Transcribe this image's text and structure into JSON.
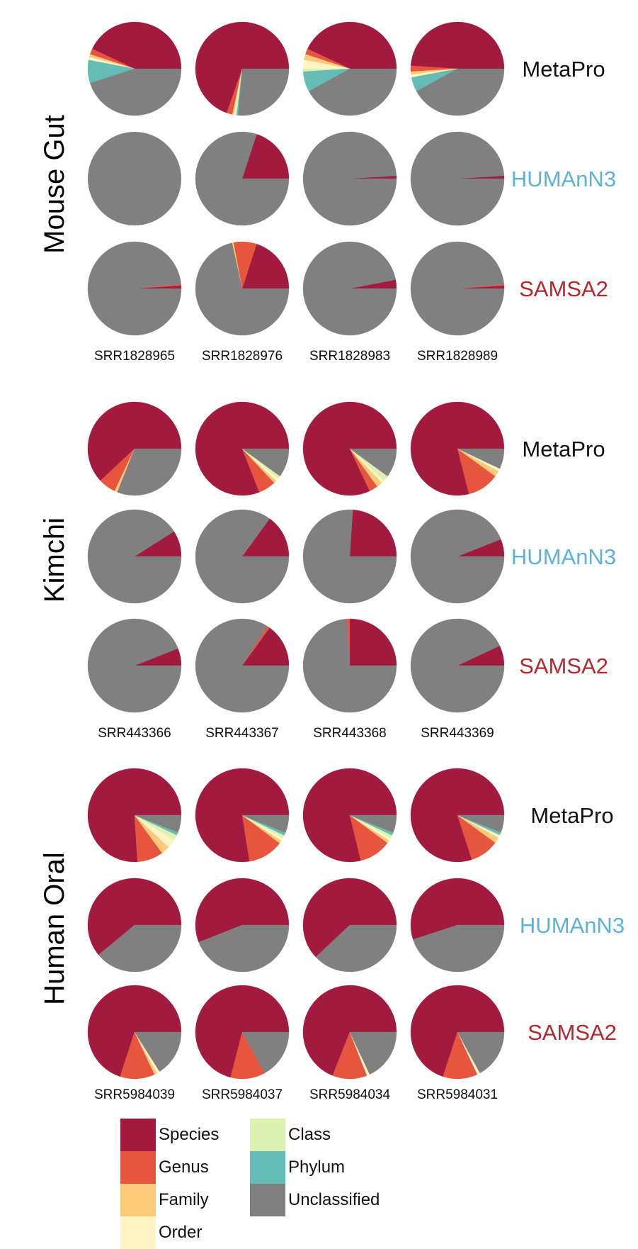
{
  "colors": {
    "Species": "#A31A3F",
    "Genus": "#E8553F",
    "Family": "#FDC97B",
    "Order": "#FEF4C4",
    "Class": "#DDF2B0",
    "Phylum": "#63BDB6",
    "Unclassified": "#808080",
    "MetaPro": "#111111",
    "HUMAnN3": "#5BB3D6",
    "SAMSA2": "#B5262D"
  },
  "chart_data": {
    "type": "pie",
    "categories": [
      "Species",
      "Genus",
      "Family",
      "Order",
      "Class",
      "Phylum",
      "Unclassified"
    ],
    "tools": [
      "MetaPro",
      "HUMAnN3",
      "SAMSA2"
    ],
    "legend": {
      "items": [
        "Species",
        "Genus",
        "Family",
        "Order",
        "Class",
        "Phylum",
        "Unclassified"
      ],
      "placement": "bottom"
    },
    "groups": [
      {
        "name": "Mouse Gut",
        "samples": [
          "SRR1828965",
          "SRR1828976",
          "SRR1828983",
          "SRR1828989"
        ],
        "pies": {
          "MetaPro": [
            [
              0.43,
              0.02,
              0.01,
              0.01,
              0.0,
              0.08,
              0.45
            ],
            [
              0.7,
              0.02,
              0.005,
              0.005,
              0.005,
              0.005,
              0.265
            ],
            [
              0.43,
              0.02,
              0.02,
              0.03,
              0.01,
              0.07,
              0.42
            ],
            [
              0.49,
              0.02,
              0.01,
              0.01,
              0.0,
              0.05,
              0.42
            ]
          ],
          "HUMAnN3": [
            [
              0.0,
              0.0,
              0.0,
              0.0,
              0.0,
              0.0,
              1.0
            ],
            [
              0.2,
              0.0,
              0.0,
              0.0,
              0.0,
              0.0,
              0.8
            ],
            [
              0.01,
              0.0,
              0.0,
              0.0,
              0.0,
              0.0,
              0.99
            ],
            [
              0.01,
              0.0,
              0.0,
              0.0,
              0.0,
              0.0,
              0.99
            ]
          ],
          "SAMSA2": [
            [
              0.01,
              0.005,
              0.0,
              0.0,
              0.0,
              0.0,
              0.985
            ],
            [
              0.2,
              0.08,
              0.005,
              0.0,
              0.0,
              0.0,
              0.715
            ],
            [
              0.03,
              0.0,
              0.0,
              0.0,
              0.0,
              0.0,
              0.97
            ],
            [
              0.01,
              0.005,
              0.0,
              0.0,
              0.0,
              0.0,
              0.985
            ]
          ]
        }
      },
      {
        "name": "Kimchi",
        "samples": [
          "SRR443366",
          "SRR443367",
          "SRR443368",
          "SRR443369"
        ],
        "pies": {
          "MetaPro": [
            [
              0.62,
              0.06,
              0.01,
              0.0,
              0.0,
              0.0,
              0.31
            ],
            [
              0.81,
              0.06,
              0.01,
              0.01,
              0.01,
              0.0,
              0.1
            ],
            [
              0.82,
              0.03,
              0.02,
              0.01,
              0.02,
              0.0,
              0.1
            ],
            [
              0.79,
              0.11,
              0.02,
              0.01,
              0.0,
              0.0,
              0.07
            ]
          ],
          "HUMAnN3": [
            [
              0.09,
              0.0,
              0.0,
              0.0,
              0.0,
              0.0,
              0.91
            ],
            [
              0.15,
              0.0,
              0.0,
              0.0,
              0.0,
              0.0,
              0.85
            ],
            [
              0.24,
              0.0,
              0.0,
              0.0,
              0.0,
              0.0,
              0.76
            ],
            [
              0.06,
              0.0,
              0.0,
              0.0,
              0.0,
              0.0,
              0.94
            ]
          ],
          "SAMSA2": [
            [
              0.06,
              0.0,
              0.0,
              0.0,
              0.0,
              0.0,
              0.94
            ],
            [
              0.15,
              0.01,
              0.0,
              0.0,
              0.0,
              0.0,
              0.84
            ],
            [
              0.25,
              0.01,
              0.0,
              0.0,
              0.0,
              0.0,
              0.74
            ],
            [
              0.07,
              0.0,
              0.0,
              0.0,
              0.0,
              0.0,
              0.93
            ]
          ]
        }
      },
      {
        "name": "Human Oral",
        "samples": [
          "SRR5984039",
          "SRR5984037",
          "SRR5984034",
          "SRR5984031"
        ],
        "pies": {
          "MetaPro": [
            [
              0.76,
              0.09,
              0.03,
              0.03,
              0.02,
              0.01,
              0.06
            ],
            [
              0.76,
              0.12,
              0.01,
              0.01,
              0.01,
              0.01,
              0.06
            ],
            [
              0.78,
              0.11,
              0.01,
              0.01,
              0.01,
              0.01,
              0.06
            ],
            [
              0.8,
              0.1,
              0.02,
              0.01,
              0.0,
              0.01,
              0.06
            ]
          ],
          "HUMAnN3": [
            [
              0.61,
              0.0,
              0.0,
              0.0,
              0.0,
              0.0,
              0.39
            ],
            [
              0.56,
              0.0,
              0.0,
              0.0,
              0.0,
              0.0,
              0.44
            ],
            [
              0.62,
              0.0,
              0.0,
              0.0,
              0.0,
              0.0,
              0.38
            ],
            [
              0.55,
              0.0,
              0.0,
              0.0,
              0.0,
              0.0,
              0.45
            ]
          ],
          "SAMSA2": [
            [
              0.7,
              0.12,
              0.01,
              0.01,
              0.0,
              0.0,
              0.16
            ],
            [
              0.71,
              0.12,
              0.0,
              0.0,
              0.0,
              0.0,
              0.17
            ],
            [
              0.69,
              0.12,
              0.0,
              0.01,
              0.0,
              0.0,
              0.18
            ],
            [
              0.7,
              0.12,
              0.0,
              0.01,
              0.0,
              0.0,
              0.17
            ]
          ]
        }
      }
    ]
  }
}
